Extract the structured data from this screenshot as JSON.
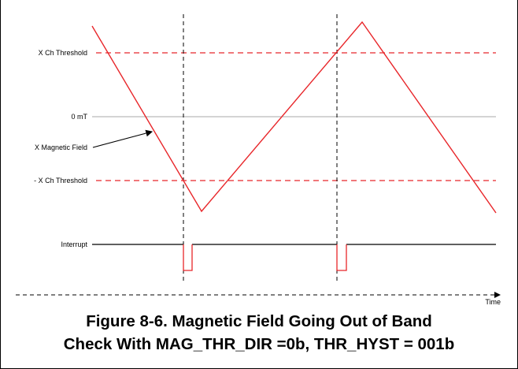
{
  "labels": {
    "x_ch_threshold": "X Ch Threshold",
    "zero_mt": "0 mT",
    "x_magnetic_field": "X Magnetic Field",
    "neg_x_ch_threshold": "- X Ch Threshold",
    "interrupt": "Interrupt",
    "time": "Time"
  },
  "caption": {
    "line1": "Figure 8-6. Magnetic Field Going Out of Band",
    "line2": "Check With MAG_THR_DIR =0b, THR_HYST = 001b"
  },
  "colors": {
    "signal": "#e8262a",
    "threshold": "#e8262a",
    "zero_line": "#aaaaaa",
    "axis": "#000000"
  }
}
